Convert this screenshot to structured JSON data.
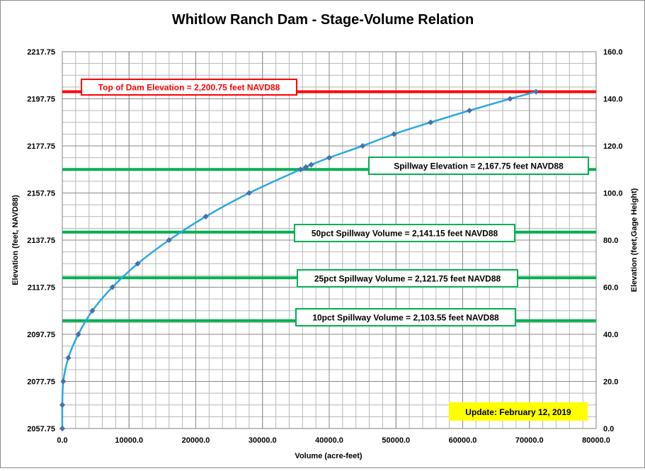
{
  "chart_data": {
    "type": "scatter",
    "title": "Whitlow Ranch Dam - Stage-Volume Relation",
    "xlabel": "Volume (acre-feet)",
    "ylabel_left": "Elevation  (feet, NAVD88)",
    "ylabel_right": "Elevation  (feet,Gage  Height)",
    "xlim": [
      0,
      80000
    ],
    "ylim_left": [
      2057.75,
      2217.75
    ],
    "ylim_right": [
      0,
      160
    ],
    "x_ticks": [
      "0.0",
      "10000.0",
      "20000.0",
      "30000.0",
      "40000.0",
      "50000.0",
      "60000.0",
      "70000.0",
      "80000.0"
    ],
    "y_ticks_left": [
      "2057.75",
      "2077.75",
      "2097.75",
      "2117.75",
      "2137.75",
      "2157.75",
      "2177.75",
      "2197.75",
      "2217.75"
    ],
    "y_ticks_right": [
      "0.0",
      "20.0",
      "40.0",
      "60.0",
      "80.0",
      "100.0",
      "120.0",
      "140.0",
      "160.0"
    ],
    "grid": true,
    "series": [
      {
        "color": "#29a8e0",
        "marker_color": "#4a72b0",
        "points": [
          [
            0,
            2057.75
          ],
          [
            0,
            2067.75
          ],
          [
            150,
            2077.75
          ],
          [
            900,
            2087.75
          ],
          [
            2400,
            2097.75
          ],
          [
            4500,
            2107.75
          ],
          [
            7500,
            2117.75
          ],
          [
            11300,
            2127.75
          ],
          [
            16000,
            2137.75
          ],
          [
            21500,
            2147.75
          ],
          [
            28000,
            2157.75
          ],
          [
            35700,
            2167.75
          ],
          [
            36500,
            2168.75
          ],
          [
            37300,
            2169.75
          ],
          [
            40000,
            2172.75
          ],
          [
            45000,
            2177.75
          ],
          [
            49700,
            2182.75
          ],
          [
            55200,
            2187.75
          ],
          [
            61000,
            2192.75
          ],
          [
            67100,
            2197.75
          ],
          [
            71000,
            2200.75
          ]
        ]
      }
    ],
    "reference_lines": [
      {
        "y": 2200.75,
        "label": "Top of Dam Elevation = 2,200.75  feet NAVD88",
        "color": "#ff0000",
        "text_color": "#ff0000"
      },
      {
        "y": 2167.75,
        "label": "Spillway Elevation = 2,167.75  feet NAVD88",
        "color": "#00b050",
        "text_color": "#000000"
      },
      {
        "y": 2141.15,
        "label": "50pct Spillway Volume = 2,141.15  feet NAVD88",
        "color": "#00b050",
        "text_color": "#000000"
      },
      {
        "y": 2121.75,
        "label": "25pct Spillway Volume = 2,121.75  feet NAVD88",
        "color": "#00b050",
        "text_color": "#000000"
      },
      {
        "y": 2103.55,
        "label": "10pct Spillway Volume = 2,103.55  feet NAVD88",
        "color": "#00b050",
        "text_color": "#000000"
      }
    ],
    "annotation": {
      "text": "Update: February 12, 2019",
      "background": "#ffff00"
    }
  }
}
